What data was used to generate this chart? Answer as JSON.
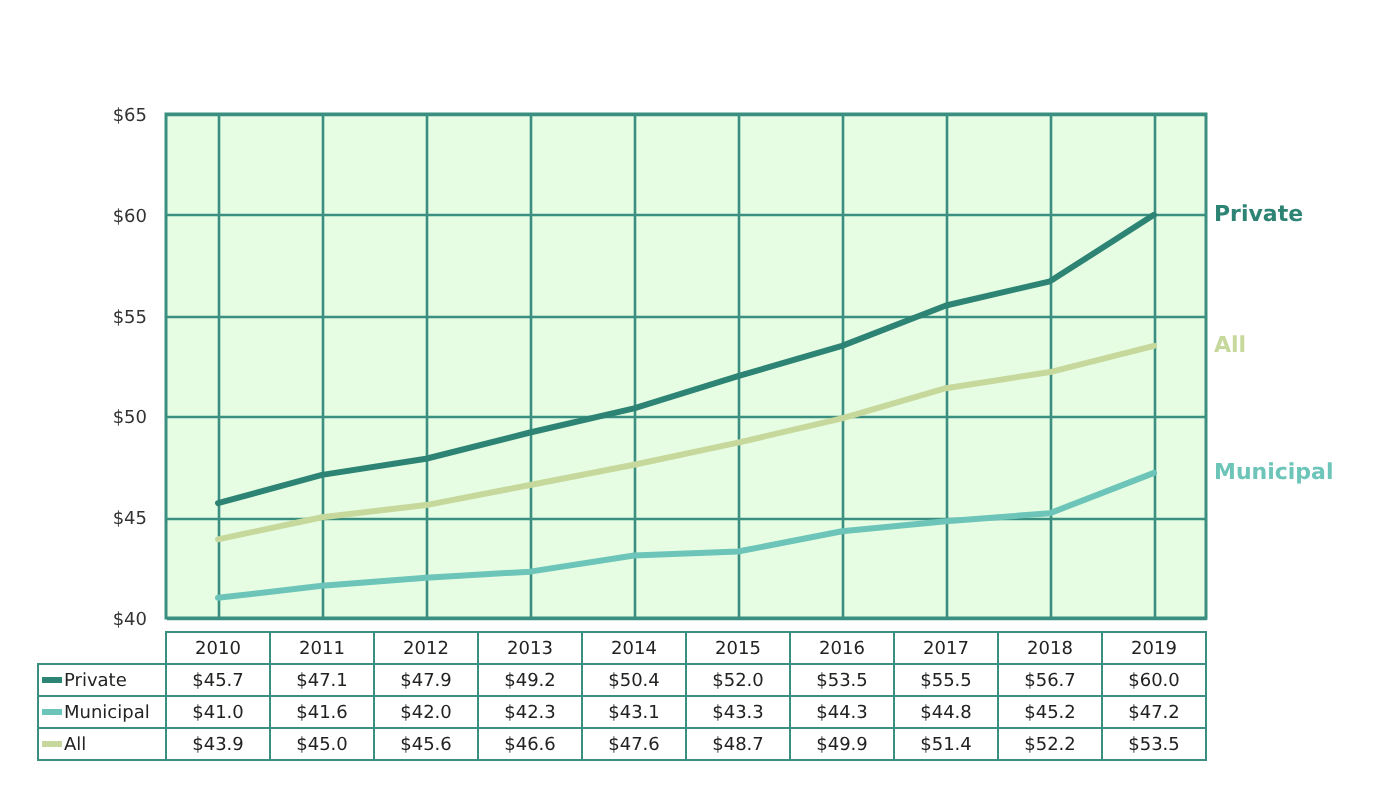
{
  "chart_data": {
    "type": "line",
    "categories": [
      "2010",
      "2011",
      "2012",
      "2013",
      "2014",
      "2015",
      "2016",
      "2017",
      "2018",
      "2019"
    ],
    "series": [
      {
        "name": "Private",
        "color": "#2e8474",
        "values": [
          45.7,
          47.1,
          47.9,
          49.2,
          50.4,
          52.0,
          53.5,
          55.5,
          56.7,
          60.0
        ],
        "value_labels": [
          "$45.7",
          "$47.1",
          "$47.9",
          "$49.2",
          "$50.4",
          "$52.0",
          "$53.5",
          "$55.5",
          "$56.7",
          "$60.0"
        ]
      },
      {
        "name": "Municipal",
        "color": "#6cc5b8",
        "values": [
          41.0,
          41.6,
          42.0,
          42.3,
          43.1,
          43.3,
          44.3,
          44.8,
          45.2,
          47.2
        ],
        "value_labels": [
          "$41.0",
          "$41.6",
          "$42.0",
          "$42.3",
          "$43.1",
          "$43.3",
          "$44.3",
          "$44.8",
          "$45.2",
          "$47.2"
        ]
      },
      {
        "name": "All",
        "color": "#c6d89b",
        "values": [
          43.9,
          45.0,
          45.6,
          46.6,
          47.6,
          48.7,
          49.9,
          51.4,
          52.2,
          53.5
        ],
        "value_labels": [
          "$43.9",
          "$45.0",
          "$45.6",
          "$46.6",
          "$47.6",
          "$48.7",
          "$49.9",
          "$51.4",
          "$52.2",
          "$53.5"
        ]
      }
    ],
    "ylim": [
      40,
      65
    ],
    "yticks": [
      {
        "value": 40,
        "label": "$40"
      },
      {
        "value": 45,
        "label": "$45"
      },
      {
        "value": 50,
        "label": "$50"
      },
      {
        "value": 55,
        "label": "$55"
      },
      {
        "value": 60,
        "label": "$60"
      },
      {
        "value": 65,
        "label": "$65"
      }
    ],
    "grid": true,
    "legend": "bottom left",
    "line_style": "solid",
    "marker": "none"
  }
}
